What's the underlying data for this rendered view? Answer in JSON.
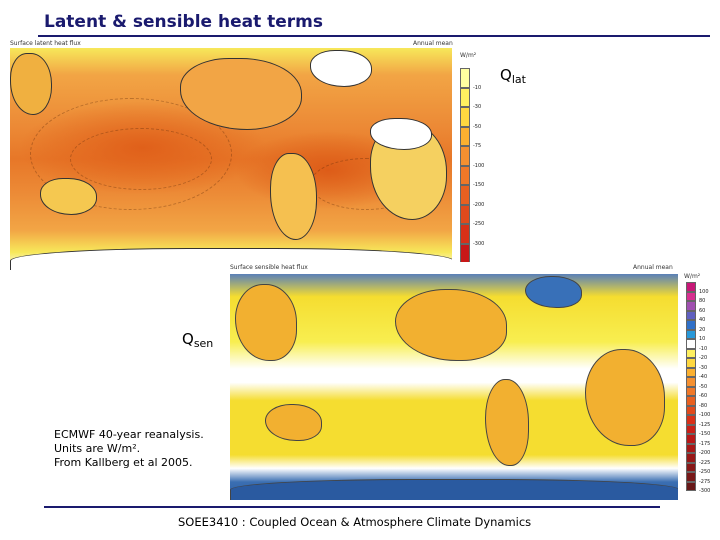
{
  "slide": {
    "title": "Latent & sensible heat terms",
    "footer": "SOEE3410 : Coupled Ocean & Atmosphere Climate Dynamics"
  },
  "latent_panel": {
    "header_left": "Surface latent heat flux",
    "header_right": "Annual mean",
    "units": "W/m²",
    "label_main": "Q",
    "label_sub": "lat",
    "colorbar_labels": [
      "-10",
      "-30",
      "-50",
      "-75",
      "-100",
      "-150",
      "-200",
      "-250",
      "-300"
    ],
    "colorbar_colors": [
      "#ffffa0",
      "#fff060",
      "#ffd840",
      "#fbb030",
      "#f59030",
      "#f07828",
      "#e86020",
      "#e04a1c",
      "#d83018",
      "#c81818"
    ]
  },
  "sensible_panel": {
    "header_left": "Surface sensible heat flux",
    "header_right": "Annual mean",
    "units": "W/m²",
    "label_main": "Q",
    "label_sub": "sen",
    "colorbar_labels": [
      "100",
      "80",
      "60",
      "40",
      "20",
      "10",
      "-10",
      "-20",
      "-30",
      "-40",
      "-50",
      "-60",
      "-80",
      "-100",
      "-125",
      "-150",
      "-175",
      "-200",
      "-225",
      "-250",
      "-275",
      "-300"
    ],
    "colorbar_colors": [
      "#c81878",
      "#d83090",
      "#a050b0",
      "#6060c0",
      "#3070c8",
      "#2898d8",
      "#ffffff",
      "#fff060",
      "#ffd840",
      "#fbb030",
      "#f59030",
      "#f07828",
      "#e86020",
      "#e04a1c",
      "#d83018",
      "#c82018",
      "#b81818",
      "#a81818",
      "#981818",
      "#881818",
      "#781818",
      "#681818"
    ]
  },
  "note": {
    "line1": "ECMWF 40-year reanalysis.",
    "line2": "Units are W/m².",
    "line3": "From Kallberg et al 2005."
  }
}
